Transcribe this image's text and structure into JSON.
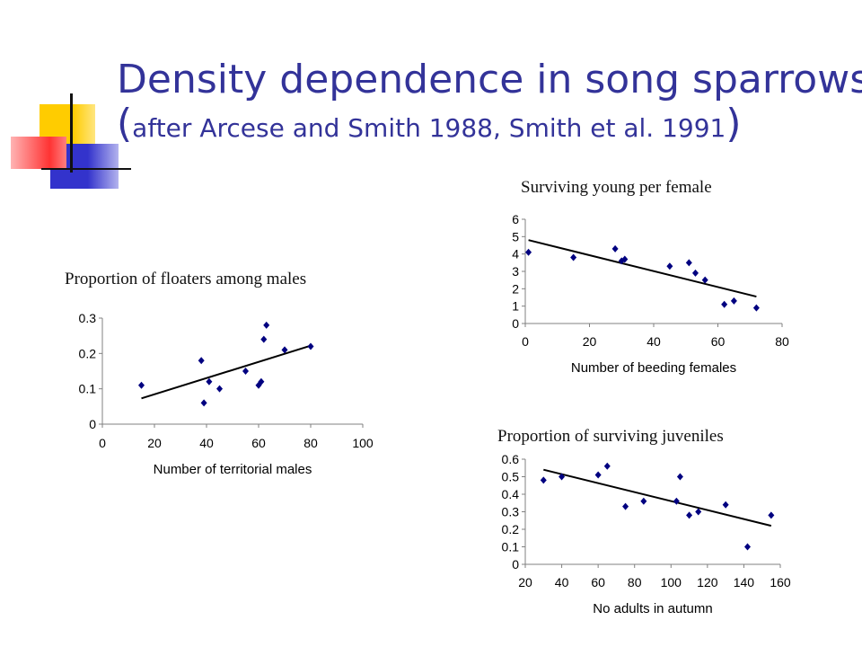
{
  "slide": {
    "title_line1": "Density dependence in song sparrows",
    "title_line2_open": "(",
    "title_line2_text": "after Arcese and Smith 1988, Smith et al. 1991",
    "title_line2_close": ")",
    "colors": {
      "title": "#333399",
      "accent_yellow": "#ffcc00",
      "accent_blue": "#3333cc",
      "accent_red": "#ff3333"
    }
  },
  "chart_data": [
    {
      "type": "scatter",
      "title": "Proportion of floaters among males",
      "xlabel": "Number of territorial males",
      "ylabel": "",
      "xlim": [
        0,
        100
      ],
      "ylim": [
        0,
        0.3
      ],
      "x_ticks": [
        "0",
        "20",
        "40",
        "60",
        "80",
        "100"
      ],
      "y_ticks": [
        "0",
        "0.1",
        "0.2",
        "0.3"
      ],
      "series": [
        {
          "x": [
            15,
            38,
            39,
            41,
            45,
            55,
            60,
            61,
            62,
            63,
            70,
            80
          ],
          "y": [
            0.11,
            0.18,
            0.06,
            0.12,
            0.1,
            0.15,
            0.11,
            0.12,
            0.24,
            0.28,
            0.21,
            0.22
          ]
        }
      ],
      "trendline": {
        "x": [
          15,
          80
        ],
        "y": [
          0.073,
          0.222
        ]
      },
      "grid": false,
      "legend": "none"
    },
    {
      "type": "scatter",
      "title": "Surviving young per female",
      "xlabel": "Number of beeding females",
      "ylabel": "",
      "xlim": [
        0,
        80
      ],
      "ylim": [
        0,
        6
      ],
      "x_ticks": [
        "0",
        "20",
        "40",
        "60",
        "80"
      ],
      "y_ticks": [
        "0",
        "1",
        "2",
        "3",
        "4",
        "5",
        "6"
      ],
      "series": [
        {
          "x": [
            1,
            15,
            28,
            30,
            31,
            45,
            51,
            53,
            56,
            62,
            65,
            72
          ],
          "y": [
            4.1,
            3.8,
            4.3,
            3.6,
            3.7,
            3.3,
            3.5,
            2.9,
            2.5,
            1.1,
            1.3,
            0.9
          ]
        }
      ],
      "trendline": {
        "x": [
          1,
          72
        ],
        "y": [
          4.8,
          1.55
        ]
      },
      "grid": false,
      "legend": "none"
    },
    {
      "type": "scatter",
      "title": "Proportion of surviving juveniles",
      "xlabel": "No adults in autumn",
      "ylabel": "",
      "xlim": [
        20,
        160
      ],
      "ylim": [
        0,
        0.6
      ],
      "x_ticks": [
        "20",
        "40",
        "60",
        "80",
        "100",
        "120",
        "140",
        "160"
      ],
      "y_ticks": [
        "0",
        "0.1",
        "0.2",
        "0.3",
        "0.4",
        "0.5",
        "0.6"
      ],
      "series": [
        {
          "x": [
            30,
            40,
            60,
            65,
            75,
            85,
            103,
            105,
            110,
            115,
            130,
            142,
            155
          ],
          "y": [
            0.48,
            0.5,
            0.51,
            0.56,
            0.33,
            0.36,
            0.36,
            0.5,
            0.28,
            0.3,
            0.34,
            0.1,
            0.28
          ]
        }
      ],
      "trendline": {
        "x": [
          30,
          155
        ],
        "y": [
          0.54,
          0.22
        ]
      },
      "grid": false,
      "legend": "none"
    }
  ]
}
